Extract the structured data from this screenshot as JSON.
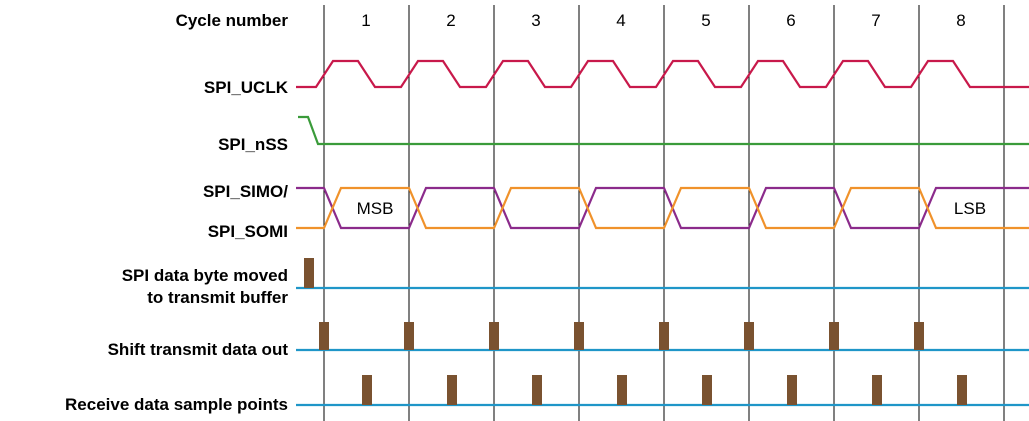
{
  "labels": {
    "cycle_number": "Cycle number",
    "uclk": "SPI_UCLK",
    "nss": "SPI_nSS",
    "simo": "SPI_SIMO/",
    "somi": "SPI_SOMI",
    "moved_line1": "SPI data byte moved",
    "moved_line2": "to transmit buffer",
    "shift": "Shift transmit data out",
    "receive": "Receive data sample points"
  },
  "cycles": [
    "1",
    "2",
    "3",
    "4",
    "5",
    "6",
    "7",
    "8"
  ],
  "bit_labels": {
    "first": "MSB",
    "last": "LSB"
  },
  "colors": {
    "uclk": "#c8194b",
    "nss": "#3a9b3a",
    "data_a": "#8b2b8b",
    "data_b": "#f0922b",
    "event_line": "#1f96c8",
    "pulse": "#7a5230"
  }
}
